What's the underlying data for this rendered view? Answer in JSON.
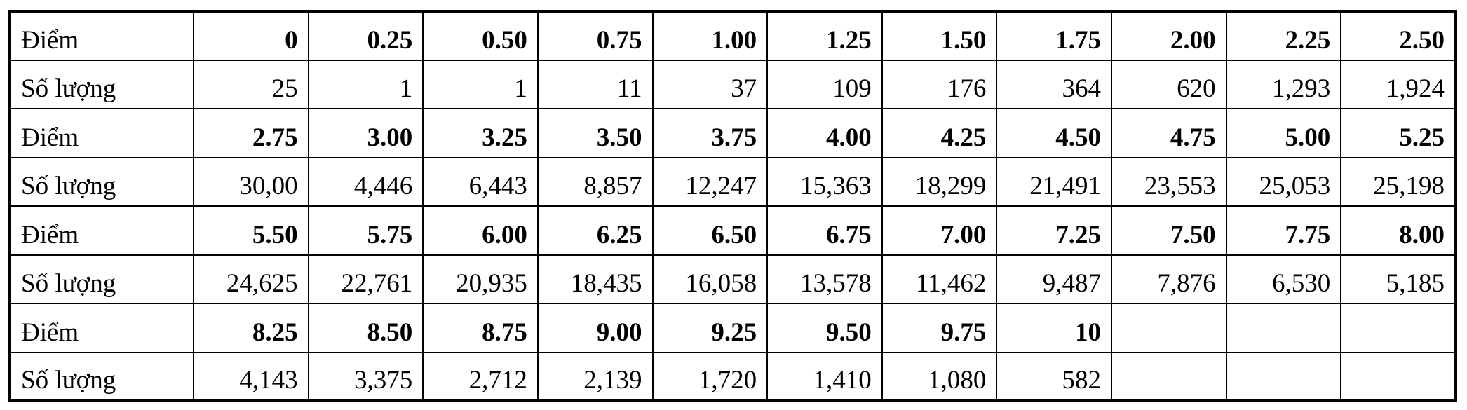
{
  "table": {
    "rows": [
      {
        "kind": "score",
        "label": "Điểm",
        "cells": [
          "0",
          "0.25",
          "0.50",
          "0.75",
          "1.00",
          "1.25",
          "1.50",
          "1.75",
          "2.00",
          "2.25",
          "2.50"
        ]
      },
      {
        "kind": "count",
        "label": "Số lượng",
        "cells": [
          "25",
          "1",
          "1",
          "11",
          "37",
          "109",
          "176",
          "364",
          "620",
          "1,293",
          "1,924"
        ]
      },
      {
        "kind": "score",
        "label": "Điểm",
        "cells": [
          "2.75",
          "3.00",
          "3.25",
          "3.50",
          "3.75",
          "4.00",
          "4.25",
          "4.50",
          "4.75",
          "5.00",
          "5.25"
        ]
      },
      {
        "kind": "count",
        "label": "Số lượng",
        "cells": [
          "30,00",
          "4,446",
          "6,443",
          "8,857",
          "12,247",
          "15,363",
          "18,299",
          "21,491",
          "23,553",
          "25,053",
          "25,198"
        ]
      },
      {
        "kind": "score",
        "label": "Điểm",
        "cells": [
          "5.50",
          "5.75",
          "6.00",
          "6.25",
          "6.50",
          "6.75",
          "7.00",
          "7.25",
          "7.50",
          "7.75",
          "8.00"
        ]
      },
      {
        "kind": "count",
        "label": "Số lượng",
        "cells": [
          "24,625",
          "22,761",
          "20,935",
          "18,435",
          "16,058",
          "13,578",
          "11,462",
          "9,487",
          "7,876",
          "6,530",
          "5,185"
        ]
      },
      {
        "kind": "score",
        "label": "Điểm",
        "cells": [
          "8.25",
          "8.50",
          "8.75",
          "9.00",
          "9.25",
          "9.50",
          "9.75",
          "10",
          "",
          "",
          ""
        ]
      },
      {
        "kind": "count",
        "label": "Số lượng",
        "cells": [
          "4,143",
          "3,375",
          "2,712",
          "2,139",
          "1,720",
          "1,410",
          "1,080",
          "582",
          "",
          "",
          ""
        ]
      }
    ]
  }
}
